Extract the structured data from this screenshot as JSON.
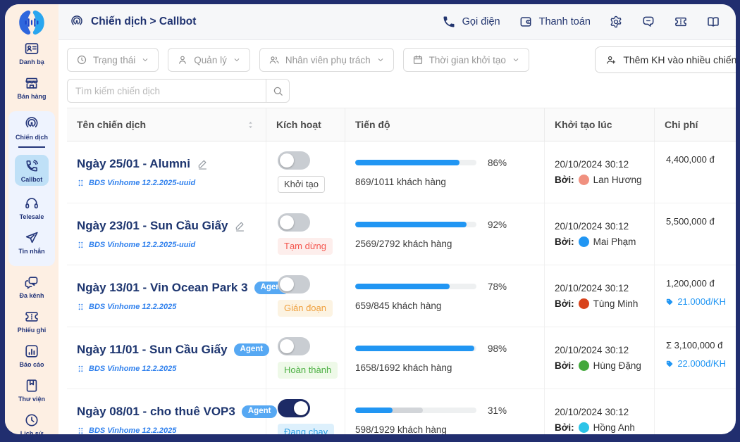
{
  "theme": {
    "frame": "#212e6f",
    "sidebar_bg": "#fdefe3",
    "navy": "#24367a",
    "accent_blue": "#2196f3",
    "active_item_bg": "#bfe0f7",
    "group_bg": "#eef3fe"
  },
  "header": {
    "title": "Chiến dịch > Callbot",
    "breadcrumb_icon": "broadcast-icon",
    "actions": [
      {
        "label": "Gọi điện",
        "icon": "phone-icon"
      },
      {
        "label": "Thanh toán",
        "icon": "wallet-icon"
      }
    ],
    "icon_buttons": [
      "gear-icon",
      "comment-icon",
      "ticket-icon",
      "open-book-icon"
    ]
  },
  "sidebar": {
    "items_top": [
      {
        "label": "Danh bạ",
        "icon": "contact-card-icon"
      },
      {
        "label": "Bán hàng",
        "icon": "store-icon"
      }
    ],
    "campaign_group": {
      "header": {
        "label": "Chiến dịch",
        "icon": "broadcast-icon"
      },
      "items": [
        {
          "label": "Callbot",
          "icon": "callbot-icon",
          "active": true
        },
        {
          "label": "Telesale",
          "icon": "headset-icon",
          "active": false
        },
        {
          "label": "Tin nhắn",
          "icon": "send-icon",
          "active": false
        }
      ]
    },
    "items_bottom": [
      {
        "label": "Đa kênh",
        "icon": "chat-bubbles-icon"
      },
      {
        "label": "Phiếu ghi",
        "icon": "ticket-icon"
      },
      {
        "label": "Báo cáo",
        "icon": "bar-chart-icon"
      },
      {
        "label": "Thư viện",
        "icon": "book-icon"
      },
      {
        "label": "Lịch sử",
        "icon": "clock-icon"
      }
    ]
  },
  "filters": [
    {
      "label": "Trạng thái",
      "icon": "status-clock-icon"
    },
    {
      "label": "Quản lý",
      "icon": "person-icon"
    },
    {
      "label": "Nhân viên phụ trách",
      "icon": "people-icon"
    },
    {
      "label": "Thời gian khởi tạo",
      "icon": "calendar-icon"
    }
  ],
  "add_customers_button": {
    "label": "Thêm KH vào nhiều chiến dịch",
    "icon": "person-add-icon"
  },
  "search": {
    "placeholder": "Tìm kiếm chiến dịch",
    "icon": "search-icon"
  },
  "table": {
    "columns": [
      "Tên chiến dịch",
      "Kích hoạt",
      "Tiến độ",
      "Khởi tạo lúc",
      "Chi phí"
    ],
    "rows": [
      {
        "name": "Ngày 25/01 - Alumni",
        "name_badge": null,
        "editable": true,
        "subtitle": "BDS Vinhome 12.2.2025-uuid",
        "toggle_on": false,
        "status": {
          "label": "Khởi tạo",
          "text_color": "#3f3f3f",
          "bg": "#ffffff",
          "border": "#d6d6d6"
        },
        "progress": {
          "percent": 86,
          "label": "86%",
          "secondary_percent": null,
          "customers": "869/1011 khách hàng"
        },
        "created": {
          "datetime": "20/10/2024 30:12",
          "by_label": "Bởi:",
          "name": "Lan Hương",
          "avatar_color": "#f0907f"
        },
        "cost": {
          "total": "4,400,000 đ",
          "per_customer": null
        }
      },
      {
        "name": "Ngày 23/01 - Sun Cầu Giấy",
        "name_badge": null,
        "editable": true,
        "subtitle": "BDS Vinhome 12.2.2025-uuid",
        "toggle_on": false,
        "status": {
          "label": "Tạm dừng",
          "text_color": "#f4564e",
          "bg": "#fdeeec",
          "border": "transparent"
        },
        "progress": {
          "percent": 92,
          "label": "92%",
          "secondary_percent": null,
          "customers": "2569/2792 khách hàng"
        },
        "created": {
          "datetime": "20/10/2024 30:12",
          "by_label": "Bởi:",
          "name": "Mai Phạm",
          "avatar_color": "#2196f3"
        },
        "cost": {
          "total": "5,500,000 đ",
          "per_customer": null
        }
      },
      {
        "name": "Ngày 13/01 - Vin Ocean Park 3",
        "name_badge": "Agent",
        "editable": false,
        "subtitle": "BDS Vinhome 12.2.2025",
        "toggle_on": false,
        "status": {
          "label": "Gián đoạn",
          "text_color": "#efa03e",
          "bg": "#fcf3e2",
          "border": "transparent"
        },
        "progress": {
          "percent": 78,
          "label": "78%",
          "secondary_percent": null,
          "customers": "659/845 khách hàng"
        },
        "created": {
          "datetime": "20/10/2024 30:12",
          "by_label": "Bởi:",
          "name": "Tùng Minh",
          "avatar_color": "#d8431c"
        },
        "cost": {
          "total": "1,200,000 đ",
          "per_customer": "21.000đ/KH"
        }
      },
      {
        "name": "Ngày 11/01 - Sun Cầu Giấy",
        "name_badge": "Agent",
        "editable": false,
        "subtitle": "BDS Vinhome 12.2.2025",
        "toggle_on": false,
        "status": {
          "label": "Hoàn thành",
          "text_color": "#4cb043",
          "bg": "#eef9e8",
          "border": "transparent"
        },
        "progress": {
          "percent": 98,
          "label": "98%",
          "secondary_percent": null,
          "customers": "1658/1692 khách hàng"
        },
        "created": {
          "datetime": "20/10/2024 30:12",
          "by_label": "Bởi:",
          "name": "Hùng Đặng",
          "avatar_color": "#43a83c"
        },
        "cost": {
          "total": "Σ 3,100,000 đ",
          "per_customer": "22.000đ/KH"
        }
      },
      {
        "name": "Ngày 08/01 - cho thuê VOP3",
        "name_badge": "Agent",
        "editable": false,
        "subtitle": "BDS Vinhome 12.2.2025",
        "toggle_on": true,
        "status": {
          "label": "Đang chạy",
          "text_color": "#2e9fe3",
          "bg": "#ddf0fc",
          "border": "transparent"
        },
        "progress": {
          "percent": 31,
          "label": "31%",
          "secondary_percent": 56,
          "customers": "598/1929 khách hàng"
        },
        "created": {
          "datetime": "20/10/2024 30:12",
          "by_label": "Bởi:",
          "name": "Hồng Anh",
          "avatar_color": "#2cc4e8"
        },
        "cost": {
          "total": null,
          "per_customer": null
        }
      }
    ]
  }
}
